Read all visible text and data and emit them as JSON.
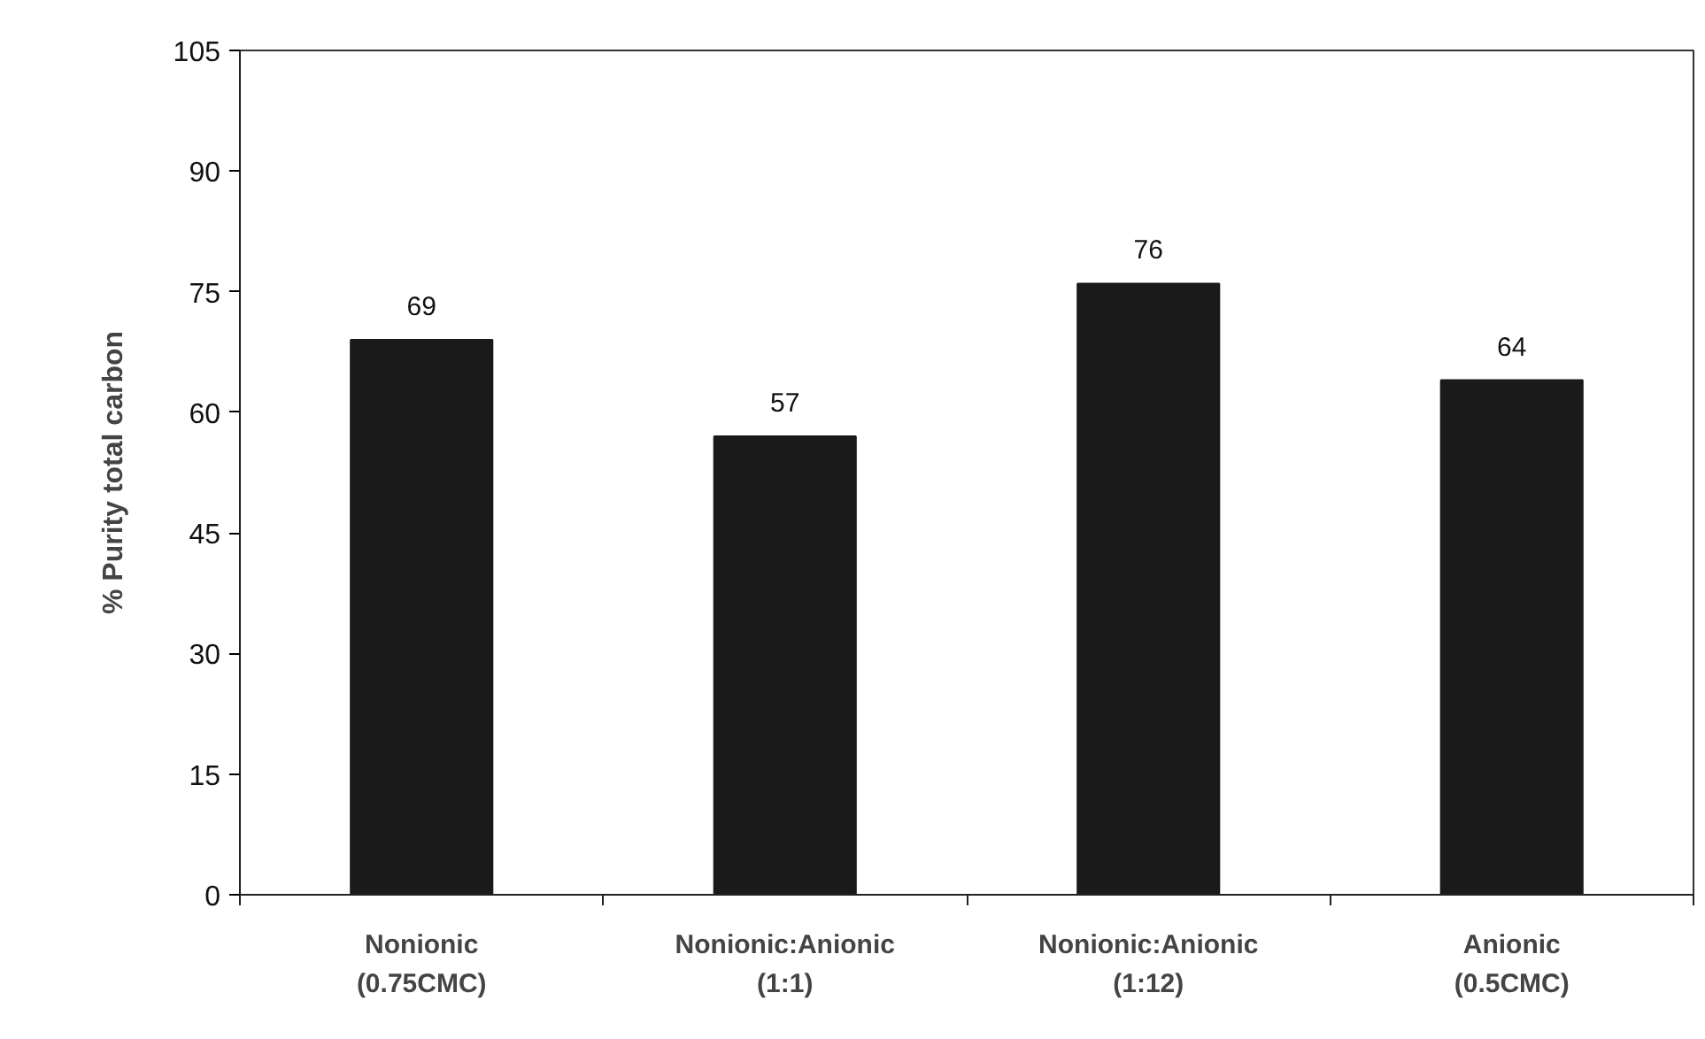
{
  "chart_data": {
    "type": "bar",
    "ylabel": "% Purity total carbon",
    "categories": [
      "Nonionic\n(0.75CMC)",
      "Nonionic:Anionic\n(1:1)",
      "Nonionic:Anionic\n(1:12)",
      "Anionic\n(0.5CMC)"
    ],
    "values": [
      69,
      57,
      76,
      64
    ],
    "color": "#1a1a1a",
    "ylim": [
      0,
      105
    ],
    "yticks": [
      0,
      15,
      30,
      45,
      60,
      75,
      90,
      105
    ],
    "data_labels": true
  }
}
